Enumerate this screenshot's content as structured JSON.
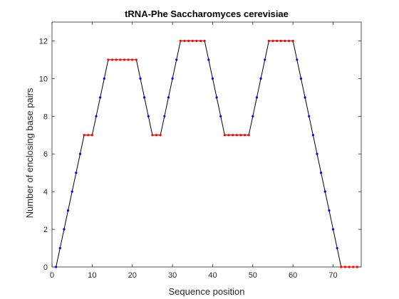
{
  "chart_data": {
    "type": "line",
    "title": "tRNA-Phe Saccharomyces cerevisiae",
    "xlabel": "Sequence position",
    "ylabel": "Number of enclosing base pairs",
    "xlim": [
      0,
      77
    ],
    "ylim": [
      0,
      13
    ],
    "xticks": [
      "0",
      "10",
      "20",
      "30",
      "40",
      "50",
      "60",
      "70"
    ],
    "yticks": [
      "0",
      "2",
      "4",
      "6",
      "8",
      "10",
      "12"
    ],
    "grid": false,
    "legend": "none",
    "colors": {
      "line": "#000000",
      "paired": "#0000ff",
      "unpaired": "#ff0000",
      "axis": "#262626"
    },
    "series": [
      {
        "x": [
          1,
          2,
          3,
          4,
          5,
          6,
          7,
          8,
          9,
          10,
          11,
          12,
          13,
          14,
          15,
          16,
          17,
          18,
          19,
          20,
          21,
          22,
          23,
          24,
          25,
          26,
          27,
          28,
          29,
          30,
          31,
          32,
          33,
          34,
          35,
          36,
          37,
          38,
          39,
          40,
          41,
          42,
          43,
          44,
          45,
          46,
          47,
          48,
          49,
          50,
          51,
          52,
          53,
          54,
          55,
          56,
          57,
          58,
          59,
          60,
          61,
          62,
          63,
          64,
          65,
          66,
          67,
          68,
          69,
          70,
          71,
          72,
          73,
          74,
          75,
          76
        ],
        "y": [
          0,
          1,
          2,
          3,
          4,
          5,
          6,
          7,
          7,
          7,
          8,
          9,
          10,
          11,
          11,
          11,
          11,
          11,
          11,
          11,
          11,
          10,
          9,
          8,
          7,
          7,
          7,
          8,
          9,
          10,
          11,
          12,
          12,
          12,
          12,
          12,
          12,
          12,
          11,
          10,
          9,
          8,
          7,
          7,
          7,
          7,
          7,
          7,
          7,
          8,
          9,
          10,
          11,
          12,
          12,
          12,
          12,
          12,
          12,
          12,
          11,
          10,
          9,
          8,
          7,
          6,
          5,
          4,
          3,
          2,
          1,
          0,
          0,
          0,
          0,
          0
        ]
      }
    ],
    "red_segments": [
      [
        8,
        10
      ],
      [
        14,
        21
      ],
      [
        25,
        27
      ],
      [
        32,
        38
      ],
      [
        43,
        49
      ],
      [
        54,
        60
      ],
      [
        72,
        76
      ]
    ]
  }
}
